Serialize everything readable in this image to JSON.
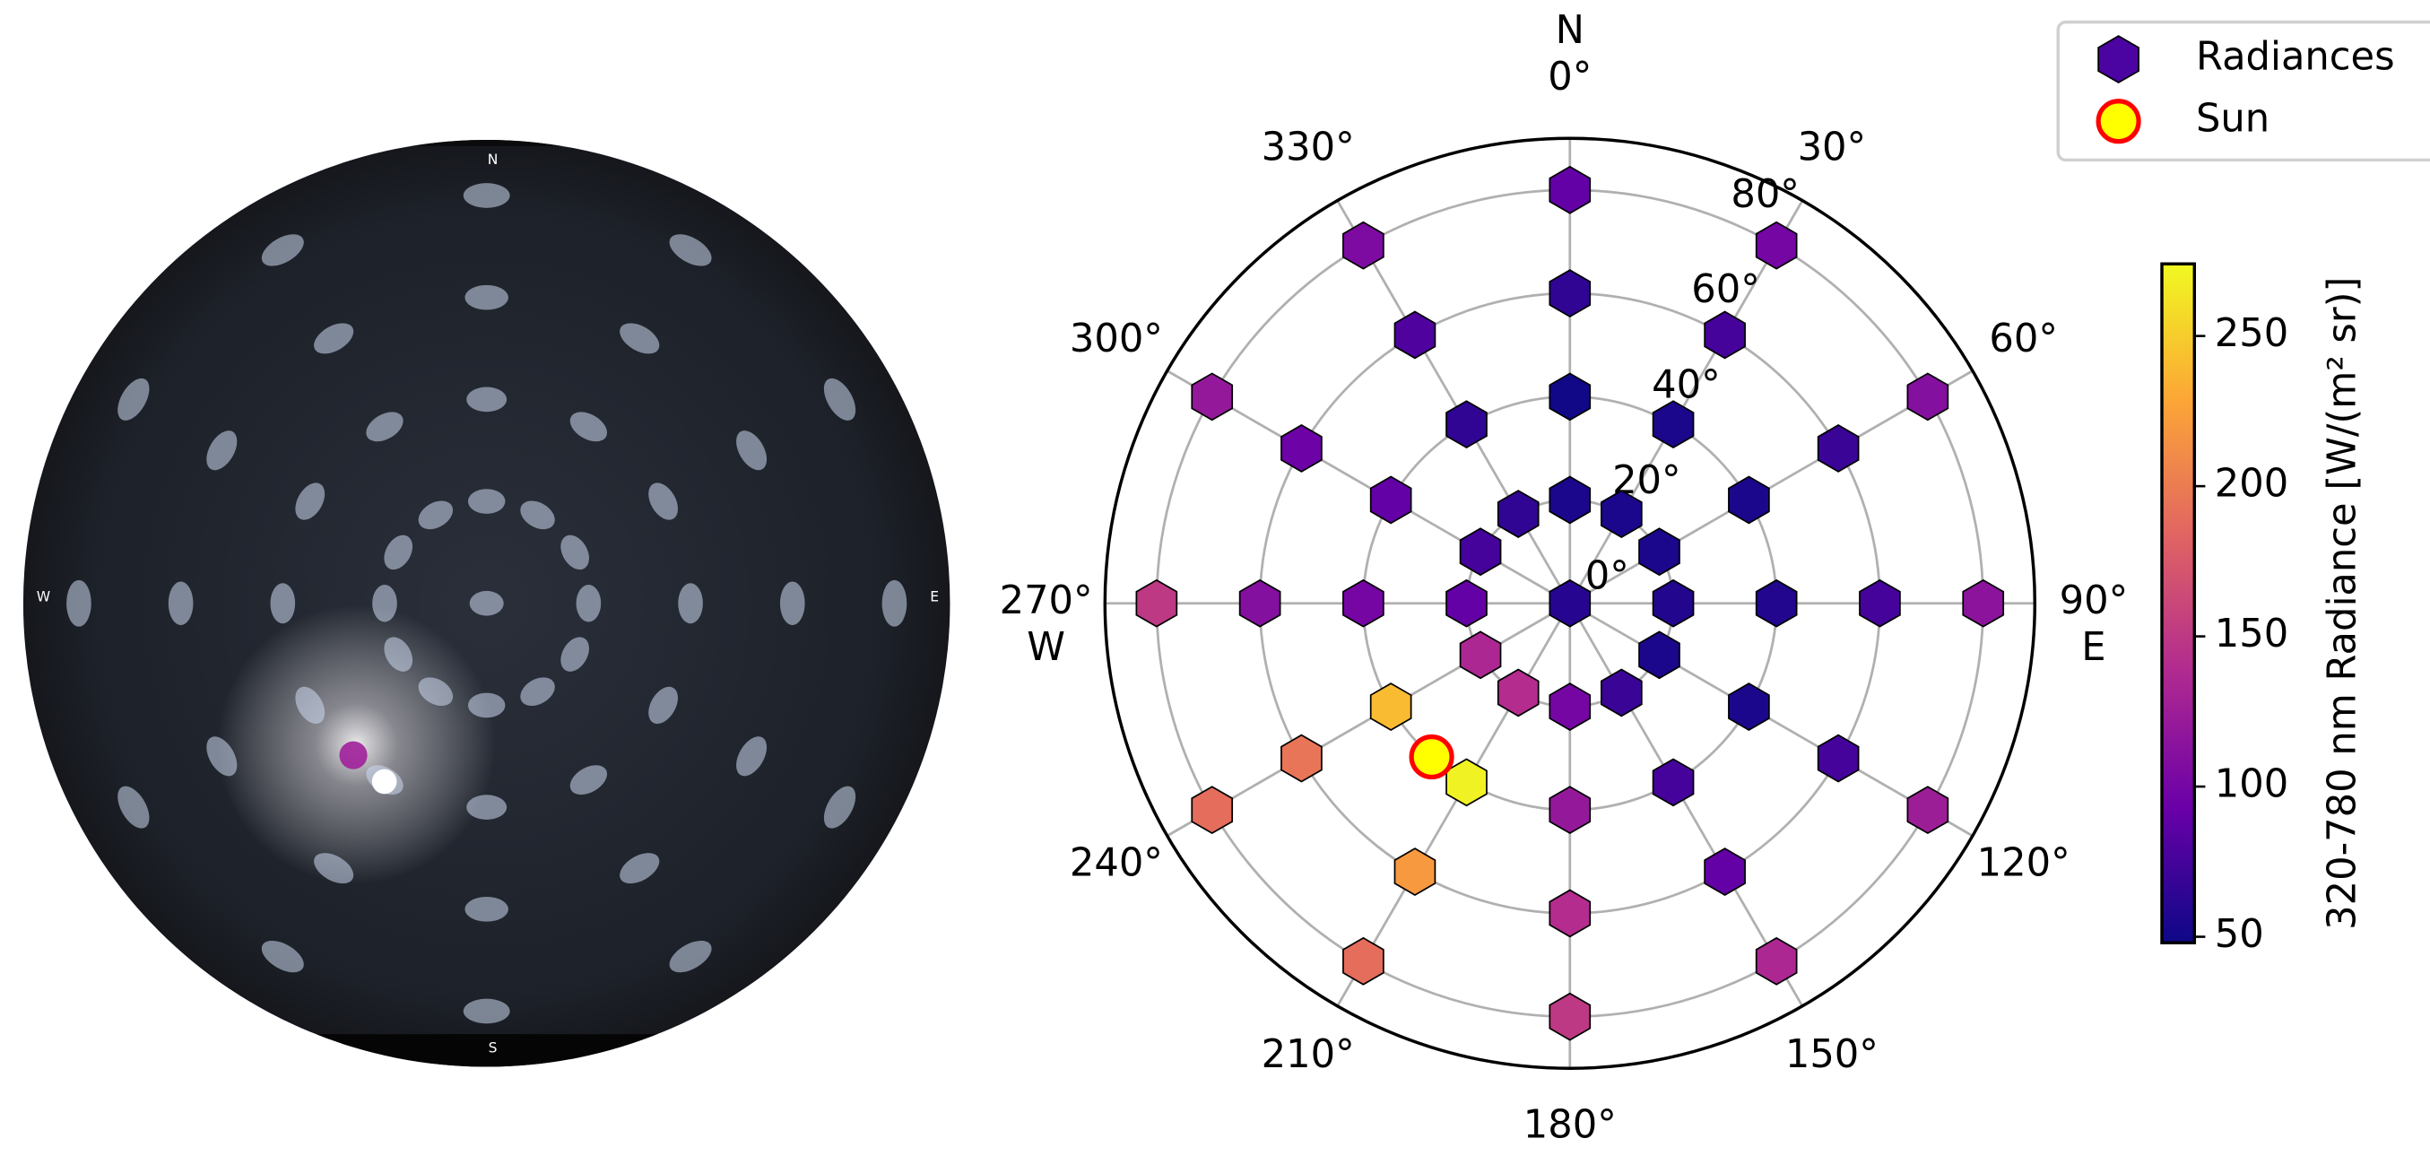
{
  "sky_image": {
    "north": "N",
    "east": "E",
    "south": "S",
    "west": "W"
  },
  "chart_data": {
    "type": "polar-scatter",
    "theta_zero": "N",
    "theta_direction": "clockwise",
    "rlim": [
      0,
      90
    ],
    "rticks": [
      {
        "value": 0,
        "label": "0°"
      },
      {
        "value": 20,
        "label": "20°"
      },
      {
        "value": 40,
        "label": "40°"
      },
      {
        "value": 60,
        "label": "60°"
      },
      {
        "value": 80,
        "label": "80°"
      }
    ],
    "thetaticks": [
      {
        "value": 0,
        "label": "0°"
      },
      {
        "value": 30,
        "label": "30°"
      },
      {
        "value": 60,
        "label": "60°"
      },
      {
        "value": 90,
        "label": "90°"
      },
      {
        "value": 120,
        "label": "120°"
      },
      {
        "value": 150,
        "label": "150°"
      },
      {
        "value": 180,
        "label": "180°"
      },
      {
        "value": 210,
        "label": "210°"
      },
      {
        "value": 240,
        "label": "240°"
      },
      {
        "value": 270,
        "label": "270°"
      },
      {
        "value": 300,
        "label": "300°"
      },
      {
        "value": 330,
        "label": "330°"
      }
    ],
    "cardinals": [
      {
        "value": 0,
        "label": "N"
      },
      {
        "value": 90,
        "label": "E"
      },
      {
        "value": 180,
        "label": "S"
      },
      {
        "value": 270,
        "label": "W"
      }
    ],
    "grid": true,
    "series": [
      {
        "name": "Radiances",
        "color": "#4b03a1",
        "marker": "hexagon",
        "azimuth": [
          0,
          0,
          30,
          60,
          90,
          120,
          150,
          180,
          210,
          240,
          270,
          300,
          330,
          0,
          30,
          60,
          90,
          120,
          150,
          180,
          210,
          240,
          270,
          300,
          330,
          0,
          30,
          60,
          90,
          120,
          150,
          180,
          210,
          240,
          270,
          300,
          330,
          0,
          30,
          60,
          90,
          120,
          150,
          180,
          210,
          240,
          270,
          300,
          330
        ],
        "zenith": [
          0,
          20,
          20,
          20,
          20,
          20,
          20,
          20,
          20,
          20,
          20,
          20,
          20,
          40,
          40,
          40,
          40,
          40,
          40,
          40,
          40,
          40,
          40,
          40,
          40,
          60,
          60,
          60,
          60,
          60,
          60,
          60,
          60,
          60,
          60,
          60,
          60,
          80,
          80,
          80,
          80,
          80,
          80,
          80,
          80,
          80,
          80,
          80,
          80
        ],
        "values": [
          60,
          55,
          55,
          55,
          58,
          55,
          70,
          100,
          140,
          135,
          90,
          75,
          65,
          50,
          55,
          55,
          58,
          55,
          75,
          120,
          270,
          240,
          100,
          90,
          65,
          65,
          75,
          70,
          75,
          75,
          90,
          140,
          220,
          195,
          110,
          95,
          80,
          90,
          100,
          110,
          115,
          125,
          135,
          150,
          190,
          190,
          150,
          120,
          105
        ]
      },
      {
        "name": "Sun",
        "color": "#ffff00",
        "edgecolor": "#ff0000",
        "marker": "circle",
        "azimuth": [
          222
        ],
        "zenith": [
          40
        ]
      }
    ],
    "colorbar": {
      "label": "320-780 nm Radiance [W/(m² sr)]",
      "clim": [
        48,
        274
      ],
      "ticks": [
        50,
        100,
        150,
        200,
        250
      ],
      "colormap": [
        "#0d0887",
        "#6a00a8",
        "#b12a90",
        "#e16462",
        "#fca636",
        "#f0f921"
      ]
    },
    "legend": "upper right"
  }
}
